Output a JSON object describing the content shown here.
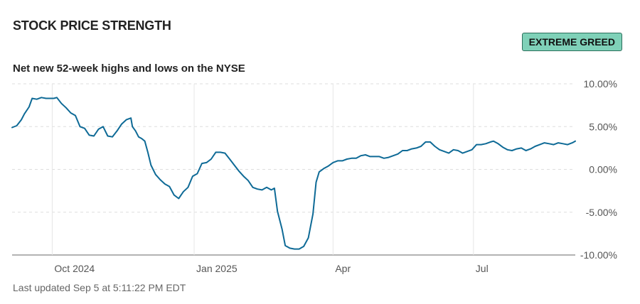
{
  "header": {
    "title": "STOCK PRICE STRENGTH",
    "badge": "EXTREME GREED",
    "subtitle": "Net new 52-week highs and lows on the NYSE",
    "updated": "Last updated Sep 5 at 5:11:22 PM EDT"
  },
  "colors": {
    "line": "#0e6a96",
    "badge_bg": "#7fd1b8",
    "badge_border": "#2c6e5b"
  },
  "chart_data": {
    "type": "line",
    "title": "",
    "xlabel": "",
    "ylabel": "",
    "x_ticks": [
      {
        "label": "Oct 2024",
        "x": 0
      },
      {
        "label": "Jan 2025",
        "x": 92
      },
      {
        "label": "Apr",
        "x": 182
      },
      {
        "label": "Jul",
        "x": 273
      }
    ],
    "y_ticks": [
      "10.00%",
      "5.00%",
      "0.00%",
      "-5.00%",
      "-10.00%"
    ],
    "ylim": [
      -10,
      10
    ],
    "xlim": [
      -26,
      339
    ],
    "grid": true,
    "series": [
      {
        "name": "",
        "points": [
          [
            -26,
            4.9
          ],
          [
            -23,
            5.1
          ],
          [
            -20,
            5.8
          ],
          [
            -18,
            6.5
          ],
          [
            -15,
            7.3
          ],
          [
            -13,
            8.3
          ],
          [
            -10,
            8.2
          ],
          [
            -7,
            8.4
          ],
          [
            -4,
            8.3
          ],
          [
            -1,
            8.3
          ],
          [
            1,
            8.3
          ],
          [
            3,
            8.4
          ],
          [
            6,
            7.7
          ],
          [
            9,
            7.2
          ],
          [
            12,
            6.6
          ],
          [
            15,
            6.3
          ],
          [
            18,
            5.0
          ],
          [
            21,
            4.8
          ],
          [
            24,
            4.0
          ],
          [
            27,
            3.9
          ],
          [
            30,
            4.7
          ],
          [
            33,
            5.0
          ],
          [
            36,
            3.9
          ],
          [
            39,
            3.8
          ],
          [
            42,
            4.5
          ],
          [
            45,
            5.3
          ],
          [
            48,
            5.8
          ],
          [
            51,
            6.0
          ],
          [
            52,
            5.0
          ],
          [
            54,
            4.5
          ],
          [
            56,
            3.8
          ],
          [
            58,
            3.6
          ],
          [
            60,
            3.3
          ],
          [
            62,
            2.0
          ],
          [
            64,
            0.5
          ],
          [
            67,
            -0.6
          ],
          [
            70,
            -1.2
          ],
          [
            73,
            -1.7
          ],
          [
            76,
            -2.0
          ],
          [
            79,
            -3.0
          ],
          [
            82,
            -3.4
          ],
          [
            85,
            -2.6
          ],
          [
            88,
            -2.1
          ],
          [
            91,
            -0.8
          ],
          [
            94,
            -0.5
          ],
          [
            97,
            0.7
          ],
          [
            100,
            0.8
          ],
          [
            103,
            1.2
          ],
          [
            106,
            2.0
          ],
          [
            109,
            2.0
          ],
          [
            112,
            1.9
          ],
          [
            115,
            1.2
          ],
          [
            118,
            0.5
          ],
          [
            121,
            -0.2
          ],
          [
            124,
            -0.8
          ],
          [
            127,
            -1.3
          ],
          [
            130,
            -2.1
          ],
          [
            133,
            -2.3
          ],
          [
            136,
            -2.4
          ],
          [
            139,
            -2.1
          ],
          [
            142,
            -2.4
          ],
          [
            144,
            -2.2
          ],
          [
            146,
            -4.9
          ],
          [
            149,
            -7.0
          ],
          [
            151,
            -8.9
          ],
          [
            154,
            -9.2
          ],
          [
            157,
            -9.3
          ],
          [
            160,
            -9.3
          ],
          [
            163,
            -9.0
          ],
          [
            166,
            -8.0
          ],
          [
            169,
            -5.2
          ],
          [
            171,
            -1.5
          ],
          [
            173,
            -0.3
          ],
          [
            176,
            0.1
          ],
          [
            179,
            0.4
          ],
          [
            182,
            0.8
          ],
          [
            185,
            1.0
          ],
          [
            188,
            1.0
          ],
          [
            191,
            1.2
          ],
          [
            194,
            1.3
          ],
          [
            197,
            1.3
          ],
          [
            200,
            1.6
          ],
          [
            203,
            1.7
          ],
          [
            206,
            1.5
          ],
          [
            209,
            1.5
          ],
          [
            212,
            1.5
          ],
          [
            215,
            1.3
          ],
          [
            218,
            1.4
          ],
          [
            221,
            1.6
          ],
          [
            224,
            1.8
          ],
          [
            227,
            2.2
          ],
          [
            230,
            2.2
          ],
          [
            233,
            2.4
          ],
          [
            236,
            2.5
          ],
          [
            239,
            2.7
          ],
          [
            242,
            3.2
          ],
          [
            245,
            3.2
          ],
          [
            248,
            2.7
          ],
          [
            251,
            2.3
          ],
          [
            254,
            2.1
          ],
          [
            257,
            1.9
          ],
          [
            260,
            2.3
          ],
          [
            263,
            2.2
          ],
          [
            266,
            1.9
          ],
          [
            269,
            2.1
          ],
          [
            272,
            2.3
          ],
          [
            275,
            2.9
          ],
          [
            278,
            2.9
          ],
          [
            281,
            3.0
          ],
          [
            284,
            3.2
          ],
          [
            286,
            3.3
          ],
          [
            289,
            3.0
          ],
          [
            292,
            2.6
          ],
          [
            295,
            2.3
          ],
          [
            298,
            2.2
          ],
          [
            301,
            2.4
          ],
          [
            304,
            2.5
          ],
          [
            307,
            2.2
          ],
          [
            310,
            2.4
          ],
          [
            313,
            2.7
          ],
          [
            316,
            2.9
          ],
          [
            319,
            3.1
          ],
          [
            322,
            3.0
          ],
          [
            325,
            2.9
          ],
          [
            328,
            3.1
          ],
          [
            331,
            3.0
          ],
          [
            334,
            2.9
          ],
          [
            337,
            3.1
          ],
          [
            339,
            3.3
          ]
        ]
      }
    ]
  }
}
